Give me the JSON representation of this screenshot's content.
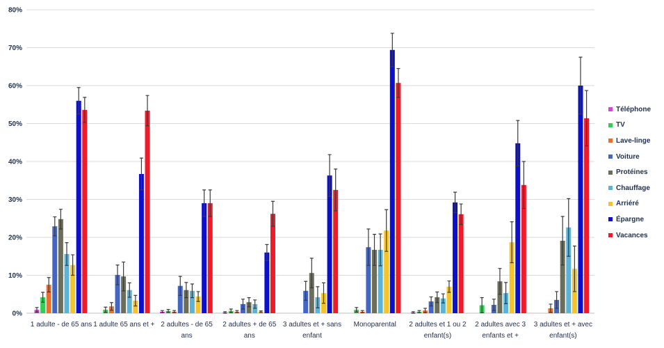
{
  "chart_data": {
    "type": "bar",
    "categories": [
      "1 adulte - de 65 ans",
      "1 adulte 65 ans et +",
      "2 adultes - de 65 ans",
      "2 adultes + de 65 ans",
      "3 adultes et + sans enfant",
      "Monoparental",
      "2 adultes et 1 ou 2 enfant(s)",
      "2 adultes avec 3 enfants et +",
      "3 adultes et + avec enfant(s)"
    ],
    "series": [
      {
        "name": "Téléphone",
        "color": "#E040E0",
        "values": [
          0.9,
          0.0,
          0.4,
          0.2,
          0.0,
          0.0,
          0.2,
          0.0,
          0.0
        ],
        "errors": [
          0.6,
          0.0,
          0.3,
          0.2,
          0.0,
          0.0,
          0.2,
          0.0,
          0.0
        ]
      },
      {
        "name": "TV",
        "color": "#33CC55",
        "values": [
          4.2,
          0.9,
          0.6,
          0.6,
          0.0,
          0.9,
          0.4,
          2.1,
          0.0
        ],
        "errors": [
          1.3,
          0.7,
          0.4,
          0.5,
          0.0,
          0.6,
          0.3,
          2.0,
          0.0
        ]
      },
      {
        "name": "Lave-linge",
        "color": "#ED6D2B",
        "values": [
          7.5,
          1.8,
          0.4,
          0.4,
          0.0,
          0.4,
          0.7,
          0.0,
          1.3
        ],
        "errors": [
          1.9,
          1.0,
          0.3,
          0.3,
          0.0,
          0.3,
          0.6,
          0.0,
          1.1
        ]
      },
      {
        "name": "Voiture",
        "color": "#4466C2",
        "values": [
          22.9,
          10.1,
          7.2,
          2.4,
          5.9,
          17.4,
          3.1,
          2.2,
          3.5
        ],
        "errors": [
          2.5,
          2.6,
          2.5,
          1.3,
          2.5,
          4.8,
          1.2,
          1.5,
          2.2
        ]
      },
      {
        "name": "Protéines",
        "color": "#6C6E5C",
        "values": [
          24.8,
          9.7,
          6.1,
          2.9,
          10.6,
          16.7,
          4.2,
          8.4,
          19.1
        ],
        "errors": [
          2.6,
          3.8,
          2.0,
          1.2,
          3.9,
          4.1,
          1.4,
          3.4,
          6.4
        ]
      },
      {
        "name": "Chauffage",
        "color": "#5CB3D6",
        "values": [
          15.6,
          6.1,
          5.9,
          2.4,
          4.2,
          16.7,
          3.9,
          5.3,
          22.6
        ],
        "errors": [
          3.0,
          1.9,
          1.8,
          1.1,
          2.8,
          4.2,
          1.2,
          2.8,
          7.6
        ]
      },
      {
        "name": "Arriéré",
        "color": "#F4C42A",
        "values": [
          12.7,
          3.3,
          4.4,
          0.4,
          5.3,
          21.8,
          7.0,
          18.7,
          11.7
        ],
        "errors": [
          2.7,
          1.4,
          1.3,
          0.2,
          2.7,
          5.5,
          1.5,
          5.4,
          6.0
        ]
      },
      {
        "name": "Épargne",
        "color": "#0D10C8",
        "values": [
          56.0,
          36.7,
          29.0,
          16.0,
          36.3,
          69.4,
          29.2,
          44.8,
          60.0
        ],
        "errors": [
          3.5,
          4.2,
          3.5,
          2.1,
          5.5,
          4.4,
          2.7,
          6.0,
          7.5
        ]
      },
      {
        "name": "Vacances",
        "color": "#EE1C2A",
        "values": [
          53.6,
          53.4,
          29.0,
          26.2,
          32.5,
          60.7,
          26.1,
          33.8,
          51.4
        ],
        "errors": [
          3.3,
          4.0,
          3.5,
          3.3,
          5.5,
          3.8,
          2.7,
          6.2,
          7.3
        ]
      }
    ],
    "ylim": [
      0,
      80
    ],
    "yticks": [
      0,
      10,
      20,
      30,
      40,
      50,
      60,
      70,
      80
    ],
    "ytick_labels": [
      "0%",
      "10%",
      "20%",
      "30%",
      "40%",
      "50%",
      "60%",
      "70%",
      "80%"
    ],
    "grid": true,
    "error_bars": true,
    "legend": "right"
  }
}
